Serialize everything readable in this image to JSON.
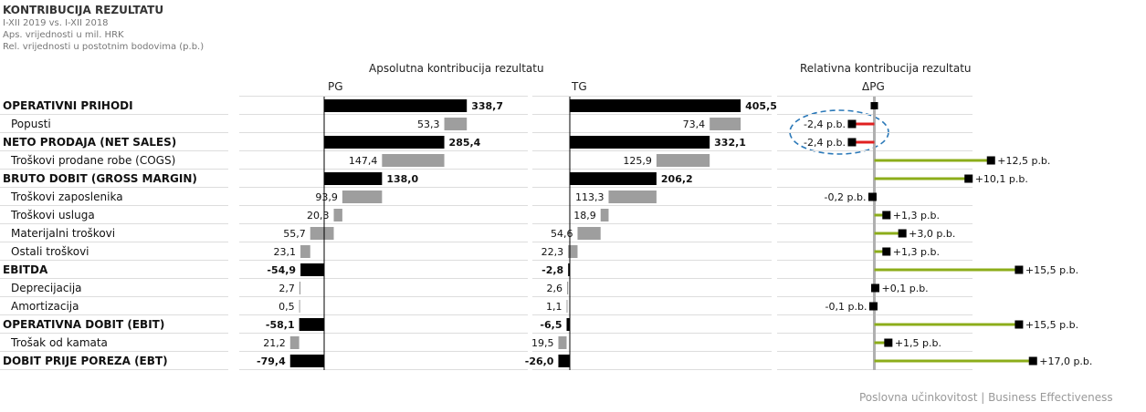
{
  "header": {
    "title": "KONTRIBUCIJA REZULTATU",
    "subtitle_1": "I-XII 2019 vs. I-XII 2018",
    "subtitle_2": "Aps. vrijednosti u mil. HRK",
    "subtitle_3": "Rel. vrijednosti u postotnim bodovima (p.b.)"
  },
  "panels": {
    "absolute_title": "Apsolutna kontribucija rezultatu",
    "relative_title": "Relativna kontribucija rezultatu",
    "pg_label": "PG",
    "tg_label": "TG",
    "delta_label": "ΔPG"
  },
  "footer": "Poslovna učinkovitost | Business Effectiveness",
  "colors": {
    "total_bar": "#000000",
    "item_bar": "#9e9e9e",
    "axis": "#b0b0b0",
    "positive": "#8cad1a",
    "negative": "#e02020",
    "highlight": "#2a78b8"
  },
  "chart_data": [
    {
      "type": "bar",
      "name": "PG",
      "categories": [
        "OPERATIVNI PRIHODI",
        "Popusti",
        "NETO PRODAJA (NET SALES)",
        "Troškovi prodane robe (COGS)",
        "BRUTO DOBIT (GROSS MARGIN)",
        "Troškovi zaposlenika",
        "Troškovi usluga",
        "Materijalni troškovi",
        "Ostali troškovi",
        "EBITDA",
        "Deprecijacija",
        "Amortizacija",
        "OPERATIVNA DOBIT (EBIT)",
        "Trošak od kamata",
        "DOBIT PRIJE POREZA (EBT)"
      ],
      "values": [
        338.7,
        53.3,
        285.4,
        147.4,
        138.0,
        93.9,
        20.3,
        55.7,
        23.1,
        -54.9,
        2.7,
        0.5,
        -58.1,
        21.2,
        -79.4
      ],
      "labels": [
        "338,7",
        "53,3",
        "285,4",
        "147,4",
        "138,0",
        "93,9",
        "20,3",
        "55,7",
        "23,1",
        "-54,9",
        "2,7",
        "0,5",
        "-58,1",
        "21,2",
        "-79,4"
      ],
      "row_kind": [
        "total",
        "item",
        "total",
        "item",
        "total",
        "item",
        "item",
        "item",
        "item",
        "total",
        "item",
        "item",
        "total",
        "item",
        "total"
      ]
    },
    {
      "type": "bar",
      "name": "TG",
      "categories": [
        "OPERATIVNI PRIHODI",
        "Popusti",
        "NETO PRODAJA (NET SALES)",
        "Troškovi prodane robe (COGS)",
        "BRUTO DOBIT (GROSS MARGIN)",
        "Troškovi zaposlenika",
        "Troškovi usluga",
        "Materijalni troškovi",
        "Ostali troškovi",
        "EBITDA",
        "Deprecijacija",
        "Amortizacija",
        "OPERATIVNA DOBIT (EBIT)",
        "Trošak od kamata",
        "DOBIT PRIJE POREZA (EBT)"
      ],
      "values": [
        405.5,
        73.4,
        332.1,
        125.9,
        206.2,
        113.3,
        18.9,
        54.6,
        22.3,
        -2.8,
        2.6,
        1.1,
        -6.5,
        19.5,
        -26.0
      ],
      "labels": [
        "405,5",
        "73,4",
        "332,1",
        "125,9",
        "206,2",
        "113,3",
        "18,9",
        "54,6",
        "22,3",
        "-2,8",
        "2,6",
        "1,1",
        "-6,5",
        "19,5",
        "-26,0"
      ],
      "row_kind": [
        "total",
        "item",
        "total",
        "item",
        "total",
        "item",
        "item",
        "item",
        "item",
        "total",
        "item",
        "item",
        "total",
        "item",
        "total"
      ]
    },
    {
      "type": "pin",
      "name": "ΔPG",
      "categories": [
        "OPERATIVNI PRIHODI",
        "Popusti",
        "NETO PRODAJA (NET SALES)",
        "Troškovi prodane robe (COGS)",
        "BRUTO DOBIT (GROSS MARGIN)",
        "Troškovi zaposlenika",
        "Troškovi usluga",
        "Materijalni troškovi",
        "Ostali troškovi",
        "EBITDA",
        "Deprecijacija",
        "Amortizacija",
        "OPERATIVNA DOBIT (EBIT)",
        "Trošak od kamata",
        "DOBIT PRIJE POREZA (EBT)"
      ],
      "values": [
        null,
        -2.4,
        -2.4,
        12.5,
        10.1,
        -0.2,
        1.3,
        3.0,
        1.3,
        15.5,
        0.1,
        -0.1,
        15.5,
        1.5,
        17.0
      ],
      "labels": [
        "",
        "-2,4 p.b.",
        "-2,4 p.b.",
        "+12,5 p.b.",
        "+10,1 p.b.",
        "-0,2 p.b.",
        "+1,3 p.b.",
        "+3,0 p.b.",
        "+1,3 p.b.",
        "+15,5 p.b.",
        "+0,1 p.b.",
        "-0,1 p.b.",
        "+15,5 p.b.",
        "+1,5 p.b.",
        "+17,0 p.b."
      ],
      "highlighted": [
        "Popusti",
        "NETO PRODAJA (NET SALES)"
      ]
    }
  ]
}
